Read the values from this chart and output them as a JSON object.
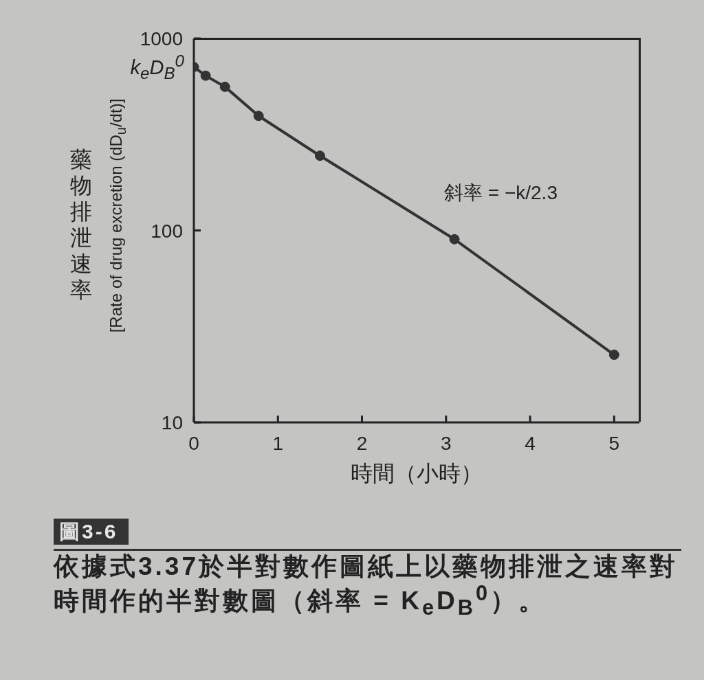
{
  "chart_data": {
    "type": "line",
    "xlabel": "時間（小時）",
    "ylabel": "藥物排泄速率\n[Rate of drug excretion (dD$_{u}$/dt)]",
    "x": [
      0,
      0.14,
      0.37,
      0.77,
      1.5,
      3.1,
      5.0
    ],
    "series": [
      {
        "color": "#333333",
        "values": [
          710,
          640,
          560,
          395,
          245,
          90,
          22.5
        ]
      }
    ],
    "log": true,
    "xlim": [
      0,
      5.3
    ],
    "xticks": [
      0,
      1,
      2,
      3,
      4,
      5
    ],
    "ylim": [
      10,
      1000
    ],
    "yticks": [
      10,
      100,
      1000
    ],
    "marker": "circle",
    "line_style": "solid",
    "annotations": [
      "斜率 = −k/2.3",
      "圖3-6",
      "依據式3.37於半對數作圖紙上以藥物排泄之速率對時間作的半對數圖（斜率 = K$_{e}$D$_{B}$$^{0}$）。",
      {
        "text": "k$_{e}$D$_{B}$$^{0}$",
        "x": 0,
        "y": 710
      }
    ]
  }
}
